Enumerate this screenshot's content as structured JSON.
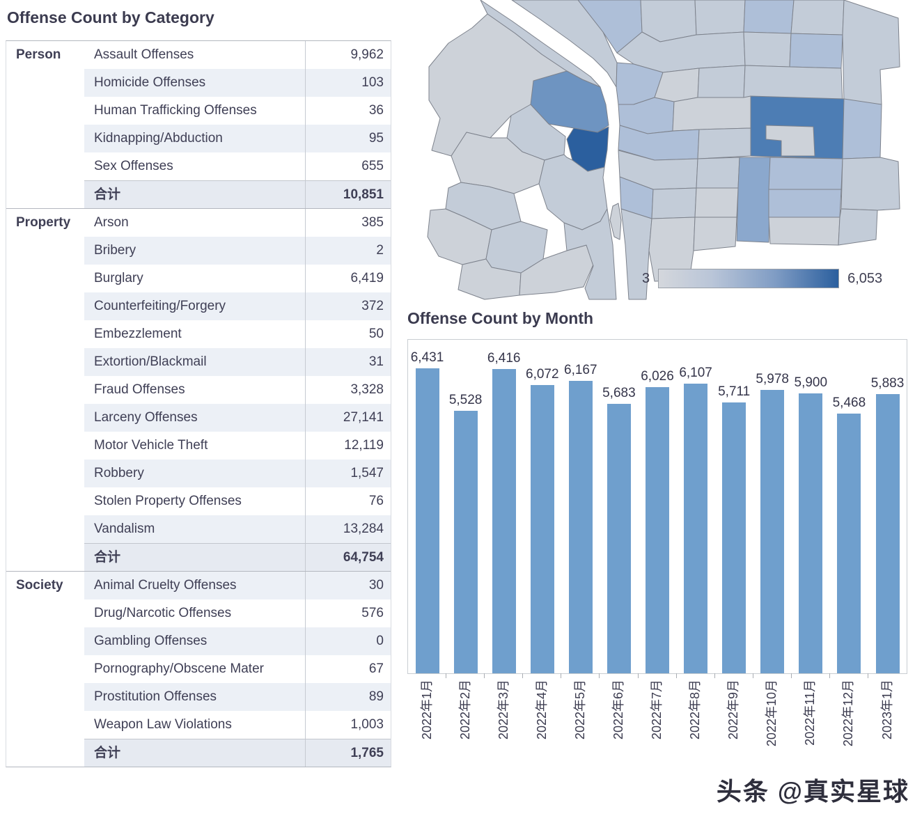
{
  "watermark": "头条 @真实星球",
  "chart_data": [
    {
      "type": "table",
      "title": "Offense Count by Category",
      "total_label": "合计",
      "sections": [
        {
          "category": "Person",
          "first_row_shaded": false,
          "rows": [
            {
              "label": "Assault Offenses",
              "value": "9,962"
            },
            {
              "label": "Homicide Offenses",
              "value": "103"
            },
            {
              "label": "Human Trafficking Offenses",
              "value": "36"
            },
            {
              "label": "Kidnapping/Abduction",
              "value": "95"
            },
            {
              "label": "Sex Offenses",
              "value": "655"
            }
          ],
          "total": "10,851"
        },
        {
          "category": "Property",
          "first_row_shaded": false,
          "rows": [
            {
              "label": "Arson",
              "value": "385"
            },
            {
              "label": "Bribery",
              "value": "2"
            },
            {
              "label": "Burglary",
              "value": "6,419"
            },
            {
              "label": "Counterfeiting/Forgery",
              "value": "372"
            },
            {
              "label": "Embezzlement",
              "value": "50"
            },
            {
              "label": "Extortion/Blackmail",
              "value": "31"
            },
            {
              "label": "Fraud Offenses",
              "value": "3,328"
            },
            {
              "label": "Larceny Offenses",
              "value": "27,141"
            },
            {
              "label": "Motor Vehicle Theft",
              "value": "12,119"
            },
            {
              "label": "Robbery",
              "value": "1,547"
            },
            {
              "label": "Stolen Property Offenses",
              "value": "76"
            },
            {
              "label": "Vandalism",
              "value": "13,284"
            }
          ],
          "total": "64,754"
        },
        {
          "category": "Society",
          "first_row_shaded": true,
          "rows": [
            {
              "label": "Animal Cruelty Offenses",
              "value": "30"
            },
            {
              "label": "Drug/Narcotic Offenses",
              "value": "576"
            },
            {
              "label": "Gambling Offenses",
              "value": "0"
            },
            {
              "label": "Pornography/Obscene Mater",
              "value": "67"
            },
            {
              "label": "Prostitution Offenses",
              "value": "89"
            },
            {
              "label": "Weapon Law Violations",
              "value": "1,003"
            }
          ],
          "total": "1,765"
        }
      ]
    },
    {
      "type": "bar",
      "title": "Offense Count by Month",
      "categories": [
        "2022年1月",
        "2022年2月",
        "2022年3月",
        "2022年4月",
        "2022年5月",
        "2022年6月",
        "2022年7月",
        "2022年8月",
        "2022年9月",
        "2022年10月",
        "2022年11月",
        "2022年12月",
        "2023年1月"
      ],
      "values": [
        6431,
        5528,
        6416,
        6072,
        6167,
        5683,
        6026,
        6107,
        5711,
        5978,
        5900,
        5468,
        5883
      ],
      "value_labels": [
        "6,431",
        "5,528",
        "6,416",
        "6,072",
        "6,167",
        "5,683",
        "6,026",
        "6,107",
        "5,711",
        "5,978",
        "5,900",
        "5,468",
        "5,883"
      ],
      "xlabel": "",
      "ylabel": "",
      "ylim": [
        0,
        7000
      ],
      "grid": false,
      "bar_color": "#6f9fcd",
      "label_color": "#35354a"
    },
    {
      "type": "heatmap",
      "legend_min_label": "3",
      "legend_max_label": "6,053",
      "legend_min": 3,
      "legend_max": 6053,
      "region_colors": [
        "#cdd2d9",
        "#c3ccd8",
        "#aebfd8",
        "#8ba8cd",
        "#6e94c1",
        "#4d7db4",
        "#2b5f9e"
      ],
      "border_color": "#7d828c"
    }
  ]
}
